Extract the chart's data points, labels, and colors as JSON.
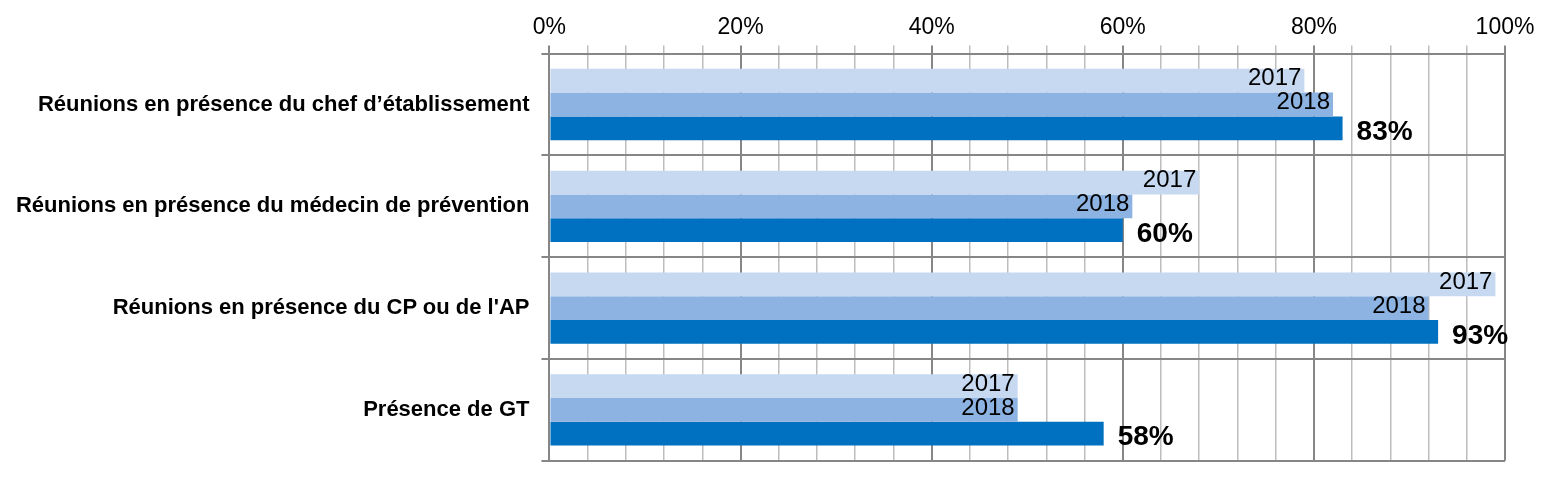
{
  "chart_data": {
    "type": "bar",
    "orientation": "horizontal",
    "categories": [
      "Réunions en présence du chef d’établissement",
      "Réunions en présence du médecin de prévention",
      "Réunions en présence du CP ou de l'AP",
      "Présence de GT"
    ],
    "series": [
      {
        "name": "2017",
        "color": "#c6d9f1",
        "values": [
          79,
          68,
          99,
          49
        ]
      },
      {
        "name": "2018",
        "color": "#8db3e2",
        "values": [
          82,
          61,
          92,
          49
        ]
      },
      {
        "color": "#0070c0",
        "values": [
          83,
          60,
          93,
          58
        ],
        "value_labels": [
          "83%",
          "60%",
          "93%",
          "58%"
        ]
      }
    ],
    "xlim": [
      0,
      100
    ],
    "xticks": [
      {
        "value": 0,
        "label": "0%"
      },
      {
        "value": 4,
        "label": null
      },
      {
        "value": 8,
        "label": null
      },
      {
        "value": 12,
        "label": null
      },
      {
        "value": 16,
        "label": null
      },
      {
        "value": 20,
        "label": "20%"
      },
      {
        "value": 24,
        "label": null
      },
      {
        "value": 28,
        "label": null
      },
      {
        "value": 32,
        "label": null
      },
      {
        "value": 36,
        "label": null
      },
      {
        "value": 40,
        "label": "40%"
      },
      {
        "value": 44,
        "label": null
      },
      {
        "value": 48,
        "label": null
      },
      {
        "value": 52,
        "label": null
      },
      {
        "value": 56,
        "label": null
      },
      {
        "value": 60,
        "label": "60%"
      },
      {
        "value": 64,
        "label": null
      },
      {
        "value": 68,
        "label": null
      },
      {
        "value": 72,
        "label": null
      },
      {
        "value": 76,
        "label": null
      },
      {
        "value": 80,
        "label": "80%"
      },
      {
        "value": 84,
        "label": null
      },
      {
        "value": 88,
        "label": null
      },
      {
        "value": 92,
        "label": null
      },
      {
        "value": 96,
        "label": null
      },
      {
        "value": 100,
        "label": "100%"
      }
    ],
    "grid": true,
    "legend": false
  }
}
